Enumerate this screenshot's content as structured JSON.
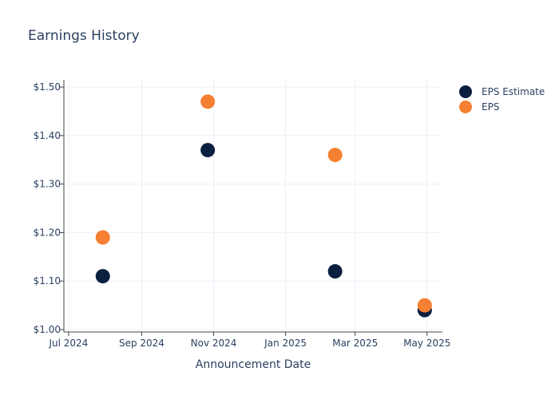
{
  "chart_data": {
    "type": "scatter",
    "title": "Earnings History",
    "xlabel": "Announcement Date",
    "ylabel": "",
    "x_ticks": [
      {
        "date": "2024-07-01",
        "label": "Jul 2024"
      },
      {
        "date": "2024-09-01",
        "label": "Sep 2024"
      },
      {
        "date": "2024-11-01",
        "label": "Nov 2024"
      },
      {
        "date": "2025-01-01",
        "label": "Jan 2025"
      },
      {
        "date": "2025-03-01",
        "label": "Mar 2025"
      },
      {
        "date": "2025-05-01",
        "label": "May 2025"
      }
    ],
    "y_ticks": [
      {
        "value": 1.0,
        "label": "$1.00"
      },
      {
        "value": 1.1,
        "label": "$1.10"
      },
      {
        "value": 1.2,
        "label": "$1.20"
      },
      {
        "value": 1.3,
        "label": "$1.30"
      },
      {
        "value": 1.4,
        "label": "$1.40"
      },
      {
        "value": 1.5,
        "label": "$1.50"
      }
    ],
    "xlim": [
      "2024-06-27",
      "2025-05-14"
    ],
    "ylim": [
      0.995,
      1.515
    ],
    "grid": true,
    "legend_position": "top-right",
    "series": [
      {
        "name": "EPS Estimate",
        "color": "#0b1f3f",
        "points": [
          {
            "x": "2024-07-30",
            "y": 1.11
          },
          {
            "x": "2024-10-27",
            "y": 1.37
          },
          {
            "x": "2025-02-12",
            "y": 1.12
          },
          {
            "x": "2025-04-29",
            "y": 1.04
          }
        ]
      },
      {
        "name": "EPS",
        "color": "#f58031",
        "points": [
          {
            "x": "2024-07-30",
            "y": 1.19
          },
          {
            "x": "2024-10-27",
            "y": 1.47
          },
          {
            "x": "2025-02-12",
            "y": 1.36
          },
          {
            "x": "2025-04-29",
            "y": 1.05
          }
        ]
      }
    ]
  }
}
